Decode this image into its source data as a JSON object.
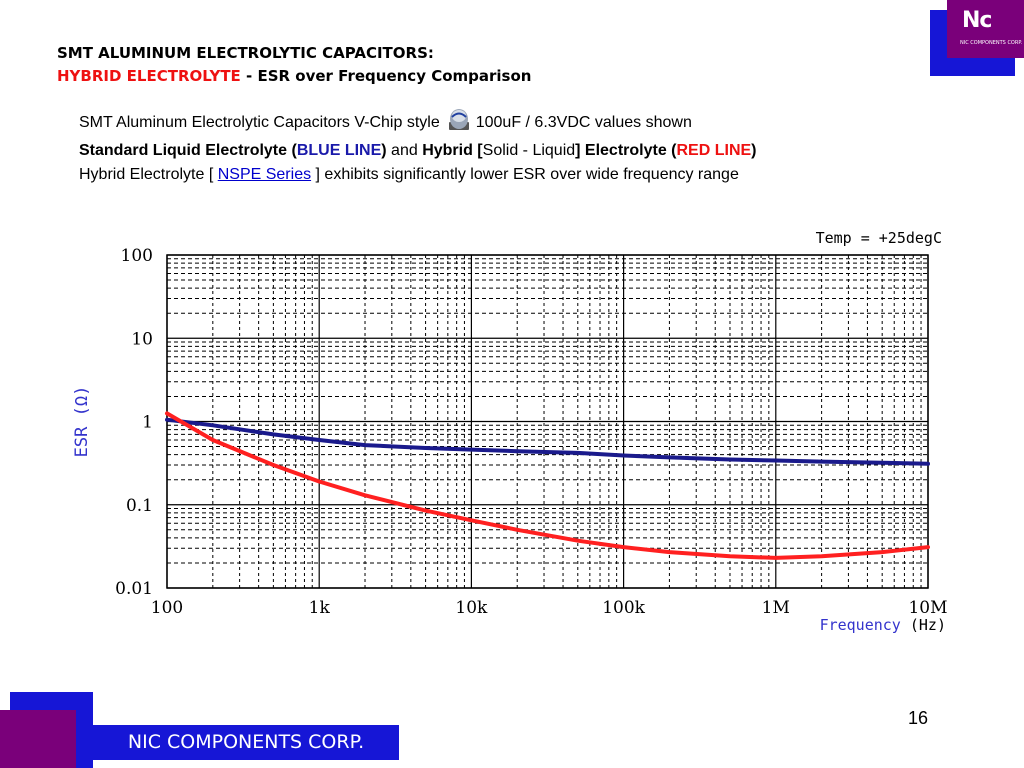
{
  "slide": {
    "title_line1": "SMT ALUMINUM ELECTROLYTIC CAPACITORS:",
    "title_line2_red": "HYBRID ELECTROLYTE",
    "title_line2_rest": " - ESR over Frequency Comparison",
    "desc_line1_a": "SMT Aluminum Electrolytic Capacitors V-Chip style",
    "desc_line1_b": "100uF / 6.3VDC values shown",
    "desc_line2_a": "Standard Liquid Electrolyte (",
    "desc_line2_blue": "BLUE LINE",
    "desc_line2_b": ")",
    "desc_line2_and": " and ",
    "desc_line2_hybrid": "Hybrid",
    "desc_line2_br_open": "  [",
    "desc_line2_solid": "Solid - Liquid",
    "desc_line2_br_close": "] Electrolyte (",
    "desc_line2_red": "RED LINE",
    "desc_line2_end": ")",
    "desc_line3_a": "Hybrid Electrolyte [ ",
    "desc_line3_link": "NSPE Series",
    "desc_line3_b": " ] exhibits significantly lower ESR over wide frequency range",
    "page_number": "16",
    "footer_company": "NIC COMPONENTS CORP.",
    "logo_text": "Nc",
    "logo_sub": "NIC COMPONENTS CORP.",
    "icon": "capacitor-icon"
  },
  "colors": {
    "brand_blue": "#1616d6",
    "brand_purple": "#7a007a",
    "title_red": "#ee1111",
    "line_blue": "#1a1a8c",
    "line_red": "#ff2020",
    "axis_label_blue": "#3333cc"
  },
  "chart_data": {
    "type": "line",
    "annotation": "Temp = +25degC",
    "xlabel_a": "Frequency",
    "xlabel_b": "(Hz)",
    "ylabel_a": "ESR",
    "ylabel_b": "(Ω)",
    "x_scale": "log",
    "y_scale": "log",
    "xlim": [
      100,
      10000000
    ],
    "ylim": [
      0.01,
      100
    ],
    "x_ticks": [
      100,
      1000,
      10000,
      100000,
      1000000,
      10000000
    ],
    "x_tick_labels": [
      "100",
      "1k",
      "10k",
      "100k",
      "1M",
      "10M"
    ],
    "y_ticks": [
      0.01,
      0.1,
      1,
      10,
      100
    ],
    "y_tick_labels": [
      "0.01",
      "0.1",
      "1",
      "10",
      "100"
    ],
    "grid": true,
    "series": [
      {
        "color": "blue",
        "x": [
          100,
          200,
          500,
          1000,
          2000,
          5000,
          10000,
          20000,
          50000,
          100000,
          200000,
          500000,
          1000000,
          2000000,
          5000000,
          10000000
        ],
        "y": [
          1.05,
          0.9,
          0.7,
          0.6,
          0.52,
          0.48,
          0.46,
          0.44,
          0.42,
          0.39,
          0.37,
          0.35,
          0.34,
          0.33,
          0.32,
          0.31
        ]
      },
      {
        "color": "red",
        "x": [
          100,
          200,
          500,
          1000,
          2000,
          5000,
          10000,
          20000,
          50000,
          100000,
          200000,
          500000,
          1000000,
          2000000,
          5000000,
          10000000
        ],
        "y": [
          1.25,
          0.6,
          0.3,
          0.19,
          0.13,
          0.085,
          0.065,
          0.05,
          0.037,
          0.031,
          0.027,
          0.024,
          0.023,
          0.024,
          0.027,
          0.031
        ]
      }
    ]
  }
}
